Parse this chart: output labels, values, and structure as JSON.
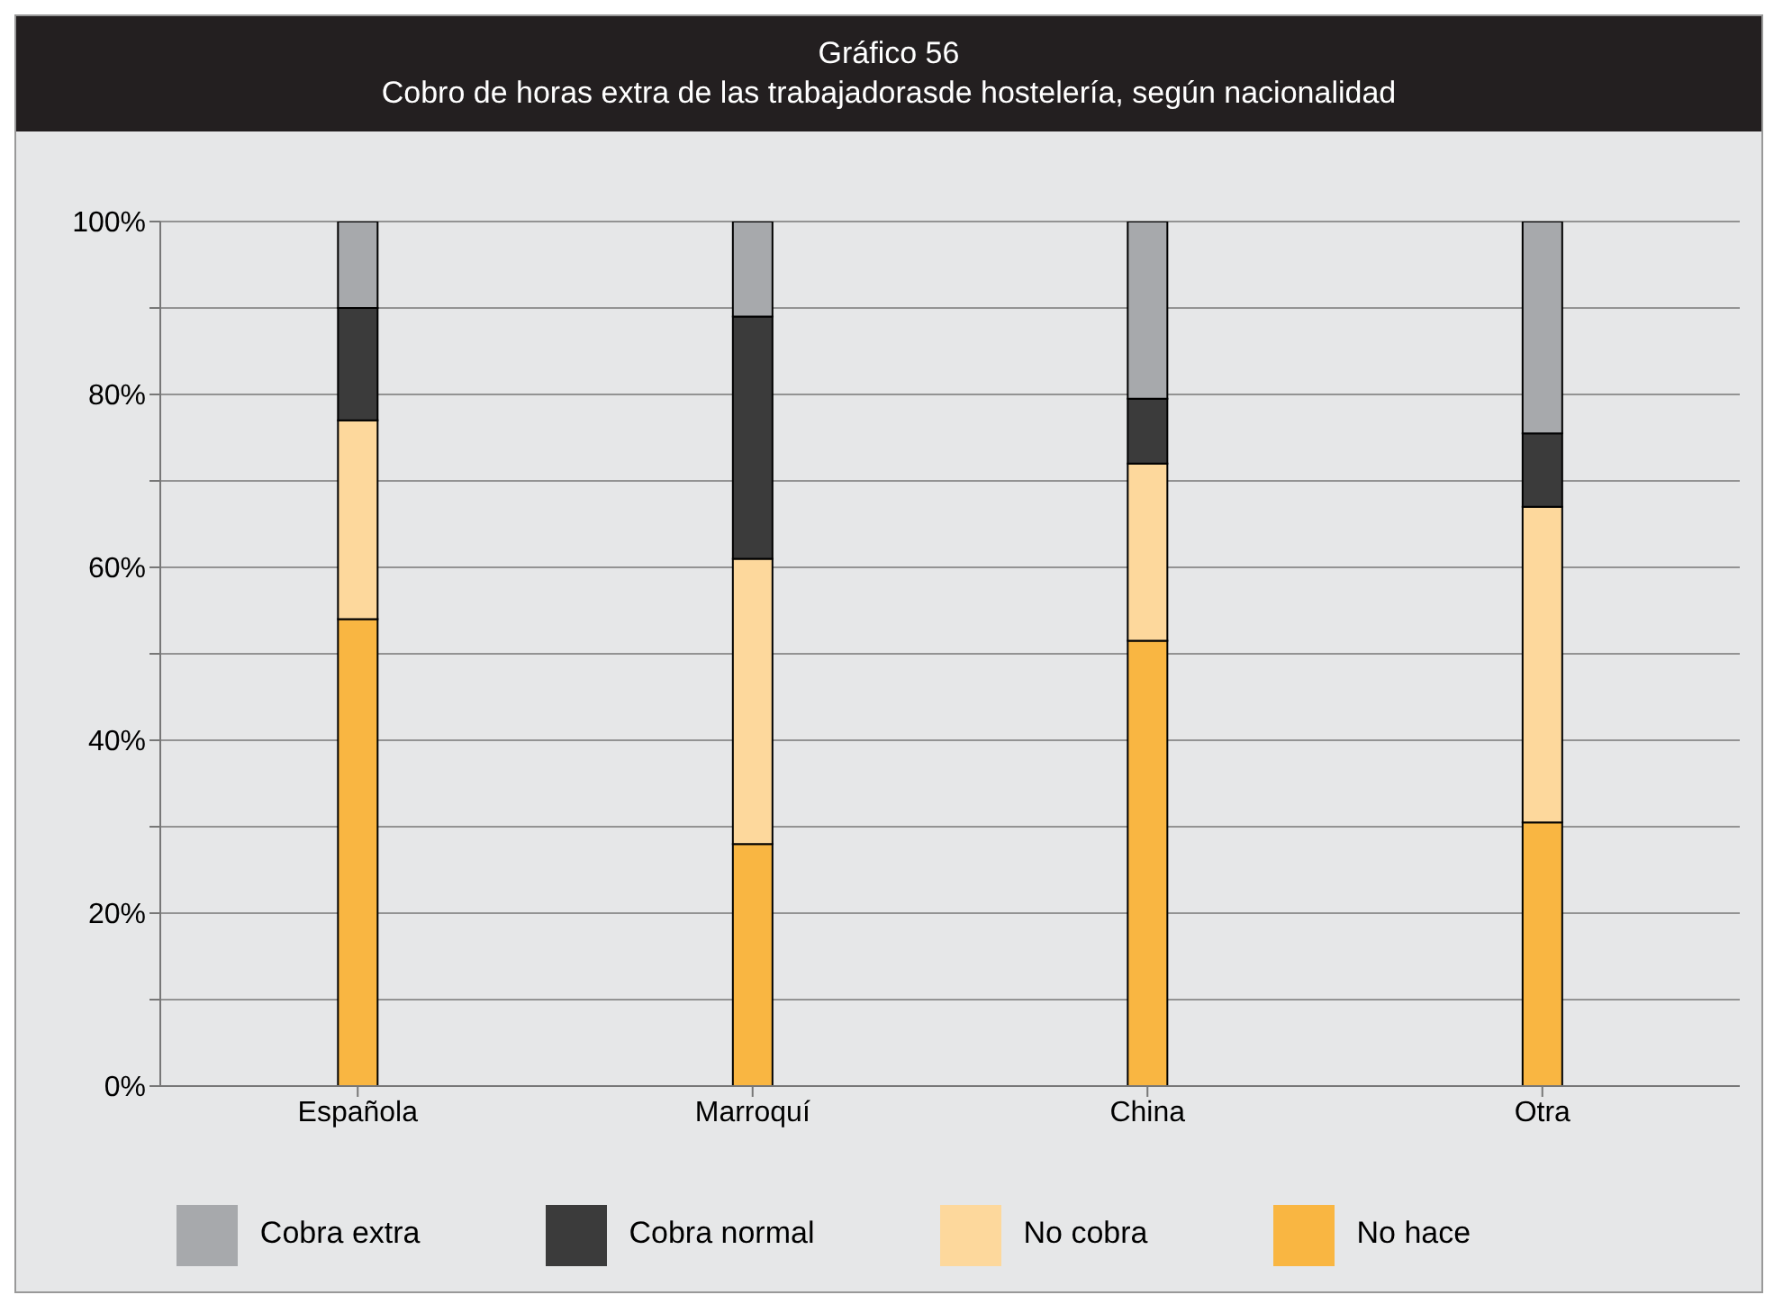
{
  "chart_data": {
    "type": "bar",
    "title": "Gráfico 56",
    "subtitle": "Cobro de horas extra de las trabajadorasde hostelería, según nacionalidad",
    "categories": [
      "Española",
      "Marroquí",
      "China",
      "Otra"
    ],
    "stacked": true,
    "series": [
      {
        "name": "No hace",
        "color": "#f9b642",
        "values": [
          54,
          28,
          51.5,
          30.5
        ]
      },
      {
        "name": "No cobra",
        "color": "#fdd89c",
        "values": [
          23,
          33,
          20.5,
          36.5
        ]
      },
      {
        "name": "Cobra normal",
        "color": "#3b3b3b",
        "values": [
          13,
          28,
          7.5,
          8.5
        ]
      },
      {
        "name": "Cobra extra",
        "color": "#a7a9ac",
        "values": [
          10,
          11,
          20.5,
          24.5
        ]
      }
    ],
    "ylim": [
      0,
      100
    ],
    "yticks": [
      {
        "value": 0,
        "label": "0%"
      },
      {
        "value": 10,
        "label": null
      },
      {
        "value": 20,
        "label": "20%"
      },
      {
        "value": 30,
        "label": null
      },
      {
        "value": 40,
        "label": "40%"
      },
      {
        "value": 50,
        "label": null
      },
      {
        "value": 60,
        "label": "60%"
      },
      {
        "value": 70,
        "label": null
      },
      {
        "value": 80,
        "label": "80%"
      },
      {
        "value": 90,
        "label": null
      },
      {
        "value": 100,
        "label": "100%"
      }
    ],
    "grid": "y",
    "legend": "bottom"
  }
}
